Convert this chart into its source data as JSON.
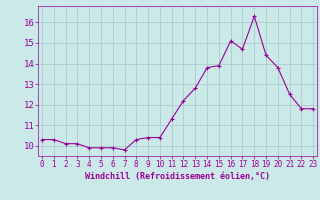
{
  "x": [
    0,
    1,
    2,
    3,
    4,
    5,
    6,
    7,
    8,
    9,
    10,
    11,
    12,
    13,
    14,
    15,
    16,
    17,
    18,
    19,
    20,
    21,
    22,
    23
  ],
  "y": [
    10.3,
    10.3,
    10.1,
    10.1,
    9.9,
    9.9,
    9.9,
    9.8,
    10.3,
    10.4,
    10.4,
    11.3,
    12.2,
    12.8,
    13.8,
    13.9,
    15.1,
    14.7,
    16.3,
    14.4,
    13.8,
    12.5,
    11.8,
    11.8
  ],
  "line_color": "#990099",
  "marker": "+",
  "marker_size": 3,
  "bg_color": "#cce9e9",
  "grid_color": "#aacccc",
  "xlabel": "Windchill (Refroidissement éolien,°C)",
  "xlabel_color": "#990099",
  "tick_color": "#990099",
  "ylim_min": 9.5,
  "ylim_max": 16.8,
  "yticks": [
    10,
    11,
    12,
    13,
    14,
    15,
    16
  ],
  "xticks": [
    0,
    1,
    2,
    3,
    4,
    5,
    6,
    7,
    8,
    9,
    10,
    11,
    12,
    13,
    14,
    15,
    16,
    17,
    18,
    19,
    20,
    21,
    22,
    23
  ],
  "xlim_min": -0.3,
  "xlim_max": 23.3
}
